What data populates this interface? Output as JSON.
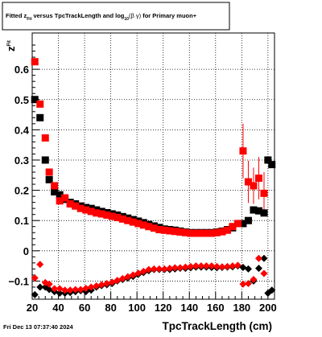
{
  "title_box": {
    "title_main": "Fitted  z",
    "title_sub": "Fit",
    "title_middle": "  versus TpcTrackLength and log",
    "title_log_sub": "10",
    "title_beta_gamma": "(β  γ)",
    "title_end": " for Primary muon+"
  },
  "footer": {
    "timestamp": "Fri Dec 13 07:37:40 2024"
  },
  "chart_data": {
    "type": "scatter",
    "xlabel": "TpcTrackLength (cm)",
    "ylabel_main": "z",
    "ylabel_sub": "Fit",
    "xlim": [
      20,
      205
    ],
    "ylim": [
      -0.16,
      0.72
    ],
    "x_ticks": [
      20,
      40,
      60,
      80,
      100,
      120,
      140,
      160,
      180,
      200
    ],
    "x_tick_labels": [
      "20",
      "40",
      "60",
      "80",
      "100",
      "120",
      "140",
      "160",
      "180",
      "200"
    ],
    "y_ticks": [
      -0.1,
      0,
      0.1,
      0.2,
      0.3,
      0.4,
      0.5,
      0.6
    ],
    "y_tick_labels": [
      "−0.1",
      "0",
      "0.1",
      "0.2",
      "0.3",
      "0.4",
      "0.5",
      "0.6"
    ],
    "grid": true,
    "series": [
      {
        "color": "#000000",
        "marker": "square",
        "points": [
          [
            22,
            0.5
          ],
          [
            26,
            0.44
          ],
          [
            30,
            0.3
          ],
          [
            33,
            0.235
          ],
          [
            37,
            0.195
          ],
          [
            41,
            0.185
          ],
          [
            45,
            0.17
          ],
          [
            49,
            0.16
          ],
          [
            53,
            0.155
          ],
          [
            57,
            0.148
          ],
          [
            61,
            0.143
          ],
          [
            65,
            0.14
          ],
          [
            69,
            0.135
          ],
          [
            73,
            0.13
          ],
          [
            77,
            0.126
          ],
          [
            81,
            0.122
          ],
          [
            85,
            0.118
          ],
          [
            89,
            0.113
          ],
          [
            93,
            0.108
          ],
          [
            97,
            0.103
          ],
          [
            101,
            0.098
          ],
          [
            105,
            0.093
          ],
          [
            109,
            0.087
          ],
          [
            113,
            0.082
          ],
          [
            117,
            0.077
          ],
          [
            121,
            0.072
          ],
          [
            125,
            0.07
          ],
          [
            129,
            0.068
          ],
          [
            133,
            0.065
          ],
          [
            137,
            0.062
          ],
          [
            141,
            0.06
          ],
          [
            145,
            0.06
          ],
          [
            149,
            0.06
          ],
          [
            153,
            0.06
          ],
          [
            157,
            0.06
          ],
          [
            161,
            0.062
          ],
          [
            165,
            0.065
          ],
          [
            169,
            0.07
          ],
          [
            173,
            0.076
          ],
          [
            177,
            0.09
          ],
          [
            181,
            0.09
          ],
          [
            185,
            0.1
          ],
          [
            189,
            0.135
          ],
          [
            193,
            0.132
          ],
          [
            197,
            0.125
          ],
          [
            200,
            0.3
          ],
          [
            203,
            0.285
          ]
        ]
      },
      {
        "color": "#ff0000",
        "marker": "square",
        "error_bars": true,
        "points": [
          [
            22,
            0.625
          ],
          [
            26,
            0.485
          ],
          [
            30,
            0.373
          ],
          [
            33,
            0.26
          ],
          [
            37,
            0.215
          ],
          [
            41,
            0.165
          ],
          [
            45,
            0.175
          ],
          [
            49,
            0.155
          ],
          [
            53,
            0.148
          ],
          [
            57,
            0.14
          ],
          [
            61,
            0.135
          ],
          [
            65,
            0.13
          ],
          [
            69,
            0.125
          ],
          [
            73,
            0.122
          ],
          [
            77,
            0.118
          ],
          [
            81,
            0.114
          ],
          [
            85,
            0.11
          ],
          [
            89,
            0.105
          ],
          [
            93,
            0.1
          ],
          [
            97,
            0.095
          ],
          [
            101,
            0.09
          ],
          [
            105,
            0.085
          ],
          [
            109,
            0.08
          ],
          [
            113,
            0.075
          ],
          [
            117,
            0.07
          ],
          [
            121,
            0.068
          ],
          [
            125,
            0.066
          ],
          [
            129,
            0.064
          ],
          [
            133,
            0.062
          ],
          [
            137,
            0.06
          ],
          [
            141,
            0.058
          ],
          [
            145,
            0.058
          ],
          [
            149,
            0.058
          ],
          [
            153,
            0.058
          ],
          [
            157,
            0.058
          ],
          [
            161,
            0.06
          ],
          [
            165,
            0.063
          ],
          [
            169,
            0.068
          ],
          [
            173,
            0.08
          ],
          [
            177,
            0.09
          ],
          [
            181,
            0.33
          ],
          [
            185,
            0.228
          ],
          [
            189,
            0.215
          ],
          [
            193,
            0.24
          ],
          [
            197,
            0.19
          ]
        ],
        "errors": [
          [
            181,
            0.09
          ],
          [
            185,
            0.07
          ],
          [
            189,
            0.06
          ],
          [
            193,
            0.07
          ],
          [
            197,
            0.07
          ]
        ]
      },
      {
        "color": "#000000",
        "marker": "diamond",
        "points": [
          [
            22,
            -0.145
          ],
          [
            26,
            -0.12
          ],
          [
            30,
            -0.12
          ],
          [
            33,
            -0.128
          ],
          [
            37,
            -0.135
          ],
          [
            41,
            -0.14
          ],
          [
            45,
            -0.14
          ],
          [
            49,
            -0.138
          ],
          [
            53,
            -0.135
          ],
          [
            57,
            -0.132
          ],
          [
            61,
            -0.135
          ],
          [
            65,
            -0.13
          ],
          [
            69,
            -0.12
          ],
          [
            73,
            -0.115
          ],
          [
            77,
            -0.112
          ],
          [
            81,
            -0.108
          ],
          [
            85,
            -0.1
          ],
          [
            89,
            -0.095
          ],
          [
            93,
            -0.09
          ],
          [
            97,
            -0.085
          ],
          [
            101,
            -0.078
          ],
          [
            105,
            -0.072
          ],
          [
            109,
            -0.066
          ],
          [
            113,
            -0.062
          ],
          [
            117,
            -0.062
          ],
          [
            121,
            -0.062
          ],
          [
            125,
            -0.062
          ],
          [
            129,
            -0.06
          ],
          [
            133,
            -0.058
          ],
          [
            137,
            -0.058
          ],
          [
            141,
            -0.056
          ],
          [
            145,
            -0.054
          ],
          [
            149,
            -0.054
          ],
          [
            153,
            -0.054
          ],
          [
            157,
            -0.055
          ],
          [
            161,
            -0.056
          ],
          [
            165,
            -0.055
          ],
          [
            169,
            -0.054
          ],
          [
            173,
            -0.053
          ],
          [
            177,
            -0.05
          ],
          [
            181,
            -0.055
          ],
          [
            185,
            -0.06
          ],
          [
            189,
            -0.1
          ],
          [
            193,
            -0.058
          ],
          [
            197,
            -0.025
          ],
          [
            200,
            -0.14
          ],
          [
            203,
            -0.13
          ]
        ]
      },
      {
        "color": "#ff0000",
        "marker": "diamond",
        "points": [
          [
            22,
            -0.09
          ],
          [
            26,
            -0.045
          ],
          [
            30,
            -0.105
          ],
          [
            33,
            -0.11
          ],
          [
            37,
            -0.125
          ],
          [
            41,
            -0.125
          ],
          [
            45,
            -0.13
          ],
          [
            49,
            -0.13
          ],
          [
            53,
            -0.128
          ],
          [
            57,
            -0.128
          ],
          [
            61,
            -0.124
          ],
          [
            65,
            -0.12
          ],
          [
            69,
            -0.116
          ],
          [
            73,
            -0.112
          ],
          [
            77,
            -0.108
          ],
          [
            81,
            -0.104
          ],
          [
            85,
            -0.098
          ],
          [
            89,
            -0.092
          ],
          [
            93,
            -0.086
          ],
          [
            97,
            -0.08
          ],
          [
            101,
            -0.074
          ],
          [
            105,
            -0.068
          ],
          [
            109,
            -0.062
          ],
          [
            113,
            -0.06
          ],
          [
            117,
            -0.06
          ],
          [
            121,
            -0.06
          ],
          [
            125,
            -0.058
          ],
          [
            129,
            -0.056
          ],
          [
            133,
            -0.056
          ],
          [
            137,
            -0.054
          ],
          [
            141,
            -0.052
          ],
          [
            145,
            -0.05
          ],
          [
            149,
            -0.05
          ],
          [
            153,
            -0.05
          ],
          [
            157,
            -0.05
          ],
          [
            161,
            -0.052
          ],
          [
            165,
            -0.053
          ],
          [
            169,
            -0.052
          ],
          [
            173,
            -0.05
          ],
          [
            177,
            -0.048
          ],
          [
            181,
            -0.11
          ],
          [
            185,
            -0.108
          ],
          [
            189,
            -0.095
          ],
          [
            193,
            -0.025
          ],
          [
            197,
            -0.075
          ]
        ]
      }
    ]
  }
}
